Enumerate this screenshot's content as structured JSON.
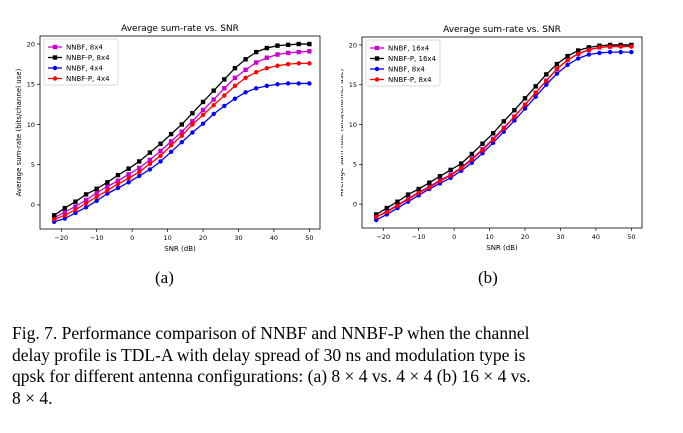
{
  "chart_data": [
    {
      "type": "line",
      "title": "Average sum-rate vs. SNR",
      "xlabel": "SNR (dB)",
      "ylabel": "Average sum-rate (bits/channel use)",
      "xlim": [
        -26,
        53
      ],
      "ylim": [
        -3,
        21
      ],
      "xticks": [
        -20,
        -10,
        0,
        10,
        20,
        30,
        40,
        50
      ],
      "yticks": [
        0,
        5,
        10,
        15,
        20
      ],
      "grid": false,
      "legend": "top-left",
      "x": [
        -22,
        -19,
        -16,
        -13,
        -10,
        -7,
        -4,
        -1,
        2,
        5,
        8,
        11,
        14,
        17,
        20,
        23,
        26,
        29,
        32,
        35,
        38,
        41,
        44,
        47,
        50
      ],
      "series": [
        {
          "name": "NNBF, 8x4",
          "color": "#cc00cc",
          "marker": "square",
          "values": [
            -1.6,
            -0.9,
            -0.2,
            0.6,
            1.5,
            2.3,
            3.0,
            3.8,
            4.6,
            5.6,
            6.7,
            7.9,
            9.1,
            10.4,
            11.8,
            13.1,
            14.5,
            15.8,
            16.8,
            17.7,
            18.3,
            18.7,
            18.9,
            19.0,
            19.1
          ]
        },
        {
          "name": "NNBF-P, 8x4",
          "color": "#000000",
          "marker": "square",
          "values": [
            -1.3,
            -0.4,
            0.4,
            1.3,
            2.0,
            2.8,
            3.7,
            4.5,
            5.4,
            6.5,
            7.6,
            8.8,
            10.0,
            11.4,
            12.8,
            14.2,
            15.6,
            17.0,
            18.1,
            19.0,
            19.5,
            19.8,
            19.9,
            20.0,
            20.0
          ]
        },
        {
          "name": "NNBF, 4x4",
          "color": "#0000ff",
          "marker": "circle",
          "values": [
            -2.1,
            -1.7,
            -1.0,
            -0.3,
            0.5,
            1.4,
            2.1,
            2.8,
            3.6,
            4.4,
            5.4,
            6.6,
            7.8,
            9.0,
            10.1,
            11.3,
            12.3,
            13.2,
            14.0,
            14.5,
            14.8,
            15.0,
            15.1,
            15.1,
            15.1
          ]
        },
        {
          "name": "NNBF-P, 4x4",
          "color": "#ff0000",
          "marker": "circle",
          "values": [
            -1.8,
            -1.3,
            -0.6,
            0.2,
            1.0,
            1.8,
            2.6,
            3.3,
            4.1,
            5.1,
            6.1,
            7.4,
            8.6,
            10.0,
            11.2,
            12.4,
            13.6,
            14.8,
            15.8,
            16.5,
            17.0,
            17.3,
            17.5,
            17.6,
            17.6
          ]
        }
      ]
    },
    {
      "type": "line",
      "title": "Average sum-rate vs. SNR",
      "xlabel": "SNR (dB)",
      "ylabel": "Average sum-rate (bits/channel use)",
      "xlim": [
        -26,
        53
      ],
      "ylim": [
        -3,
        21
      ],
      "xticks": [
        -20,
        -10,
        0,
        10,
        20,
        30,
        40,
        50
      ],
      "yticks": [
        0,
        5,
        10,
        15,
        20
      ],
      "grid": false,
      "legend": "top-left",
      "x": [
        -22,
        -19,
        -16,
        -13,
        -10,
        -7,
        -4,
        -1,
        2,
        5,
        8,
        11,
        14,
        17,
        20,
        23,
        26,
        29,
        32,
        35,
        38,
        41,
        44,
        47,
        50
      ],
      "series": [
        {
          "name": "NNBF, 16x4",
          "color": "#cc00cc",
          "marker": "square",
          "values": [
            -1.6,
            -0.9,
            -0.1,
            0.7,
            1.5,
            2.2,
            3.0,
            3.7,
            4.6,
            5.7,
            6.9,
            8.2,
            9.6,
            11.0,
            12.5,
            14.0,
            15.5,
            17.0,
            18.1,
            18.9,
            19.4,
            19.7,
            19.8,
            19.9,
            19.9
          ]
        },
        {
          "name": "NNBF-P, 16x4",
          "color": "#000000",
          "marker": "square",
          "values": [
            -1.3,
            -0.5,
            0.3,
            1.2,
            1.9,
            2.7,
            3.5,
            4.3,
            5.1,
            6.3,
            7.6,
            8.9,
            10.4,
            11.8,
            13.3,
            14.8,
            16.3,
            17.6,
            18.6,
            19.3,
            19.7,
            19.9,
            20.0,
            20.0,
            20.0
          ]
        },
        {
          "name": "NNBF, 8x4",
          "color": "#0000ff",
          "marker": "circle",
          "values": [
            -2.0,
            -1.3,
            -0.5,
            0.3,
            1.1,
            1.9,
            2.6,
            3.3,
            4.2,
            5.2,
            6.4,
            7.7,
            9.1,
            10.5,
            12.0,
            13.5,
            15.0,
            16.4,
            17.5,
            18.3,
            18.8,
            19.0,
            19.1,
            19.1,
            19.1
          ]
        },
        {
          "name": "NNBF-P, 8x4",
          "color": "#ff0000",
          "marker": "circle",
          "values": [
            -1.6,
            -1.0,
            -0.2,
            0.6,
            1.4,
            2.1,
            2.9,
            3.6,
            4.5,
            5.6,
            6.8,
            8.1,
            9.5,
            11.0,
            12.5,
            14.0,
            15.5,
            17.0,
            18.1,
            18.9,
            19.4,
            19.7,
            19.8,
            19.8,
            19.8
          ]
        }
      ]
    }
  ],
  "subfigures": [
    "(a)",
    "(b)"
  ],
  "caption": [
    "Fig. 7.  Performance comparison of NNBF and NNBF-P when the channel",
    "delay profile is TDL-A with delay spread of 30 ns and modulation type is",
    "qpsk for different antenna configurations: (a) 8 × 4 vs. 4 × 4 (b) 16 × 4 vs.",
    "8 × 4."
  ]
}
